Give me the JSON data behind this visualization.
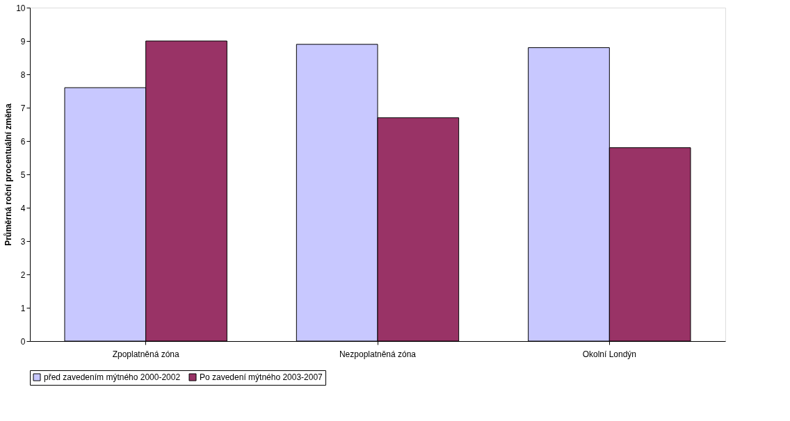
{
  "chart_data": {
    "type": "bar",
    "ylabel": "Průměrná roční procentuální změna",
    "categories": [
      "Zpoplatněná zóna",
      "Nezpoplatněná zóna",
      "Okolní Londýn"
    ],
    "series": [
      {
        "name": "před zavedením mýtného 2000-2002",
        "color": "#c8c8ff",
        "values": [
          7.6,
          8.9,
          8.8
        ]
      },
      {
        "name": "Po zavedení mýtného 2003-2007",
        "color": "#993366",
        "values": [
          9.0,
          6.7,
          5.8
        ]
      }
    ],
    "ylim": [
      0,
      10
    ],
    "yticks": [
      0,
      1,
      2,
      3,
      4,
      5,
      6,
      7,
      8,
      9,
      10
    ],
    "grid": false,
    "legend": "bottom"
  }
}
